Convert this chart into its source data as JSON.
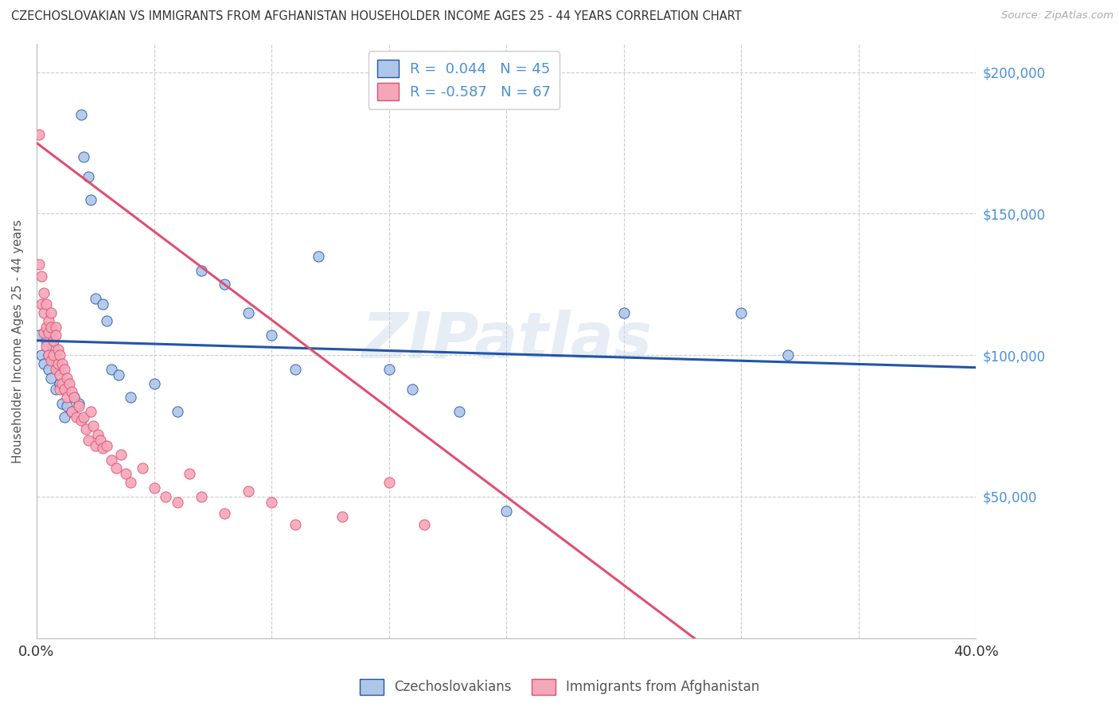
{
  "title": "CZECHOSLOVAKIAN VS IMMIGRANTS FROM AFGHANISTAN HOUSEHOLDER INCOME AGES 25 - 44 YEARS CORRELATION CHART",
  "source": "Source: ZipAtlas.com",
  "ylabel": "Householder Income Ages 25 - 44 years",
  "xmin": 0.0,
  "xmax": 0.4,
  "ymin": 0,
  "ymax": 210000,
  "yticks": [
    50000,
    100000,
    150000,
    200000
  ],
  "ytick_labels": [
    "$50,000",
    "$100,000",
    "$150,000",
    "$200,000"
  ],
  "color_czech": "#aec6e8",
  "color_afghan": "#f4a7b9",
  "line_color_czech": "#2255aa",
  "line_color_afghan": "#e05070",
  "R_czech": 0.044,
  "N_czech": 45,
  "R_afghan": -0.587,
  "N_afghan": 67,
  "watermark": "ZIPatlas",
  "background_color": "#ffffff",
  "grid_color": "#cccccc",
  "czech_scatter_x": [
    0.001,
    0.002,
    0.003,
    0.004,
    0.005,
    0.005,
    0.006,
    0.006,
    0.007,
    0.008,
    0.008,
    0.009,
    0.01,
    0.011,
    0.012,
    0.012,
    0.013,
    0.015,
    0.016,
    0.018,
    0.019,
    0.02,
    0.022,
    0.023,
    0.025,
    0.028,
    0.03,
    0.032,
    0.035,
    0.04,
    0.05,
    0.06,
    0.07,
    0.08,
    0.09,
    0.1,
    0.11,
    0.12,
    0.15,
    0.16,
    0.18,
    0.2,
    0.25,
    0.3,
    0.32
  ],
  "czech_scatter_y": [
    107000,
    100000,
    97000,
    105000,
    100000,
    95000,
    108000,
    92000,
    103000,
    98000,
    88000,
    95000,
    90000,
    83000,
    88000,
    78000,
    82000,
    80000,
    85000,
    83000,
    185000,
    170000,
    163000,
    155000,
    120000,
    118000,
    112000,
    95000,
    93000,
    85000,
    90000,
    80000,
    130000,
    125000,
    115000,
    107000,
    95000,
    135000,
    95000,
    88000,
    80000,
    45000,
    115000,
    115000,
    100000
  ],
  "afghan_scatter_x": [
    0.001,
    0.001,
    0.002,
    0.002,
    0.003,
    0.003,
    0.003,
    0.004,
    0.004,
    0.004,
    0.005,
    0.005,
    0.005,
    0.006,
    0.006,
    0.006,
    0.007,
    0.007,
    0.008,
    0.008,
    0.008,
    0.009,
    0.009,
    0.01,
    0.01,
    0.01,
    0.011,
    0.011,
    0.012,
    0.012,
    0.013,
    0.013,
    0.014,
    0.015,
    0.015,
    0.016,
    0.017,
    0.018,
    0.019,
    0.02,
    0.021,
    0.022,
    0.023,
    0.024,
    0.025,
    0.026,
    0.027,
    0.028,
    0.03,
    0.032,
    0.034,
    0.036,
    0.038,
    0.04,
    0.045,
    0.05,
    0.055,
    0.06,
    0.065,
    0.07,
    0.08,
    0.09,
    0.1,
    0.11,
    0.13,
    0.15,
    0.165
  ],
  "afghan_scatter_y": [
    178000,
    132000,
    128000,
    118000,
    122000,
    115000,
    108000,
    118000,
    110000,
    103000,
    112000,
    108000,
    100000,
    115000,
    110000,
    98000,
    105000,
    100000,
    110000,
    107000,
    95000,
    102000,
    97000,
    100000,
    93000,
    88000,
    97000,
    90000,
    95000,
    88000,
    92000,
    85000,
    90000,
    87000,
    80000,
    85000,
    78000,
    82000,
    77000,
    78000,
    74000,
    70000,
    80000,
    75000,
    68000,
    72000,
    70000,
    67000,
    68000,
    63000,
    60000,
    65000,
    58000,
    55000,
    60000,
    53000,
    50000,
    48000,
    58000,
    50000,
    44000,
    52000,
    48000,
    40000,
    43000,
    55000,
    40000
  ]
}
